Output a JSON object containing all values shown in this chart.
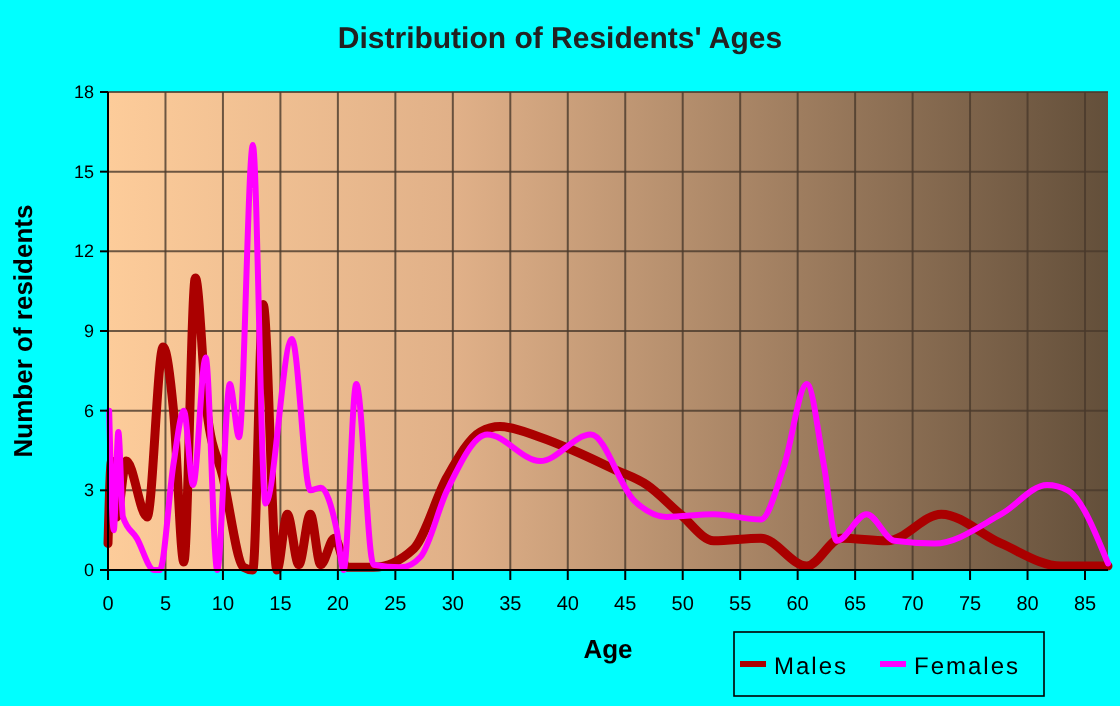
{
  "chart_data": {
    "type": "line",
    "title": "Distribution of Residents' Ages",
    "xlabel": "Age",
    "ylabel": "Number of residents",
    "xlim": [
      0,
      87
    ],
    "xticks": [
      0,
      5,
      10,
      15,
      20,
      25,
      30,
      35,
      40,
      45,
      50,
      55,
      60,
      65,
      70,
      75,
      80,
      85
    ],
    "ylim": [
      0,
      18
    ],
    "yticks": [
      0,
      3,
      6,
      9,
      12,
      15,
      18
    ],
    "grid": true,
    "legend": "bottom right",
    "marker": "none",
    "line_style": "solid",
    "series": [
      {
        "name": "Males",
        "color": "#aa0000",
        "x": [
          0,
          0.3,
          0.75,
          1.6,
          3.4,
          4.8,
          5.7,
          6.6,
          7.6,
          8.6,
          10,
          11.8,
          12.6,
          13.5,
          14.7,
          15.6,
          16.6,
          17.6,
          18.5,
          19.7,
          20.8,
          23.1,
          26.6,
          29.5,
          32.4,
          34.1,
          37.6,
          40.5,
          44,
          46.9,
          49.8,
          52.7,
          56.8,
          60.8,
          63.8,
          67.8,
          72.5,
          77.7,
          82.9,
          87
        ],
        "values": [
          1,
          4.1,
          2,
          4.1,
          2,
          8.4,
          6,
          0.3,
          11,
          6,
          3.5,
          0.1,
          0,
          10,
          0,
          2.1,
          0.2,
          2.1,
          0.2,
          1.2,
          0.1,
          0.1,
          0.8,
          3.5,
          5.2,
          5.4,
          5,
          4.5,
          3.8,
          3.2,
          2.1,
          1.1,
          1.2,
          0.15,
          1.2,
          1.1,
          2.1,
          1,
          0.15,
          0.15
        ]
      },
      {
        "name": "Females",
        "color": "#ff00ff",
        "x": [
          0.1,
          0.5,
          0.9,
          1.3,
          2.5,
          4,
          4.5,
          5.7,
          6.6,
          7.4,
          8.5,
          9.5,
          10.6,
          11.4,
          12.6,
          13.7,
          16,
          17.6,
          18.5,
          19.9,
          20.5,
          21.6,
          23.1,
          25.5,
          27.2,
          29.5,
          33,
          37.6,
          42,
          45.8,
          48.6,
          52.7,
          56.8,
          58.8,
          60.8,
          62.3,
          63.4,
          66,
          68.4,
          71.9,
          77.7,
          81.7,
          83.5,
          87
        ],
        "values": [
          6,
          1.5,
          5.2,
          2,
          1.2,
          0,
          0,
          4,
          6,
          3.2,
          8,
          0,
          7,
          5,
          16,
          2.5,
          8.7,
          3,
          3.1,
          1.5,
          0,
          7,
          0.2,
          0.1,
          0.5,
          3,
          5.1,
          4.1,
          5.1,
          2.6,
          2,
          2.1,
          1.9,
          3.9,
          7,
          3.9,
          1.1,
          2.1,
          1.1,
          1,
          2.1,
          3.2,
          3,
          0.25
        ]
      }
    ]
  }
}
